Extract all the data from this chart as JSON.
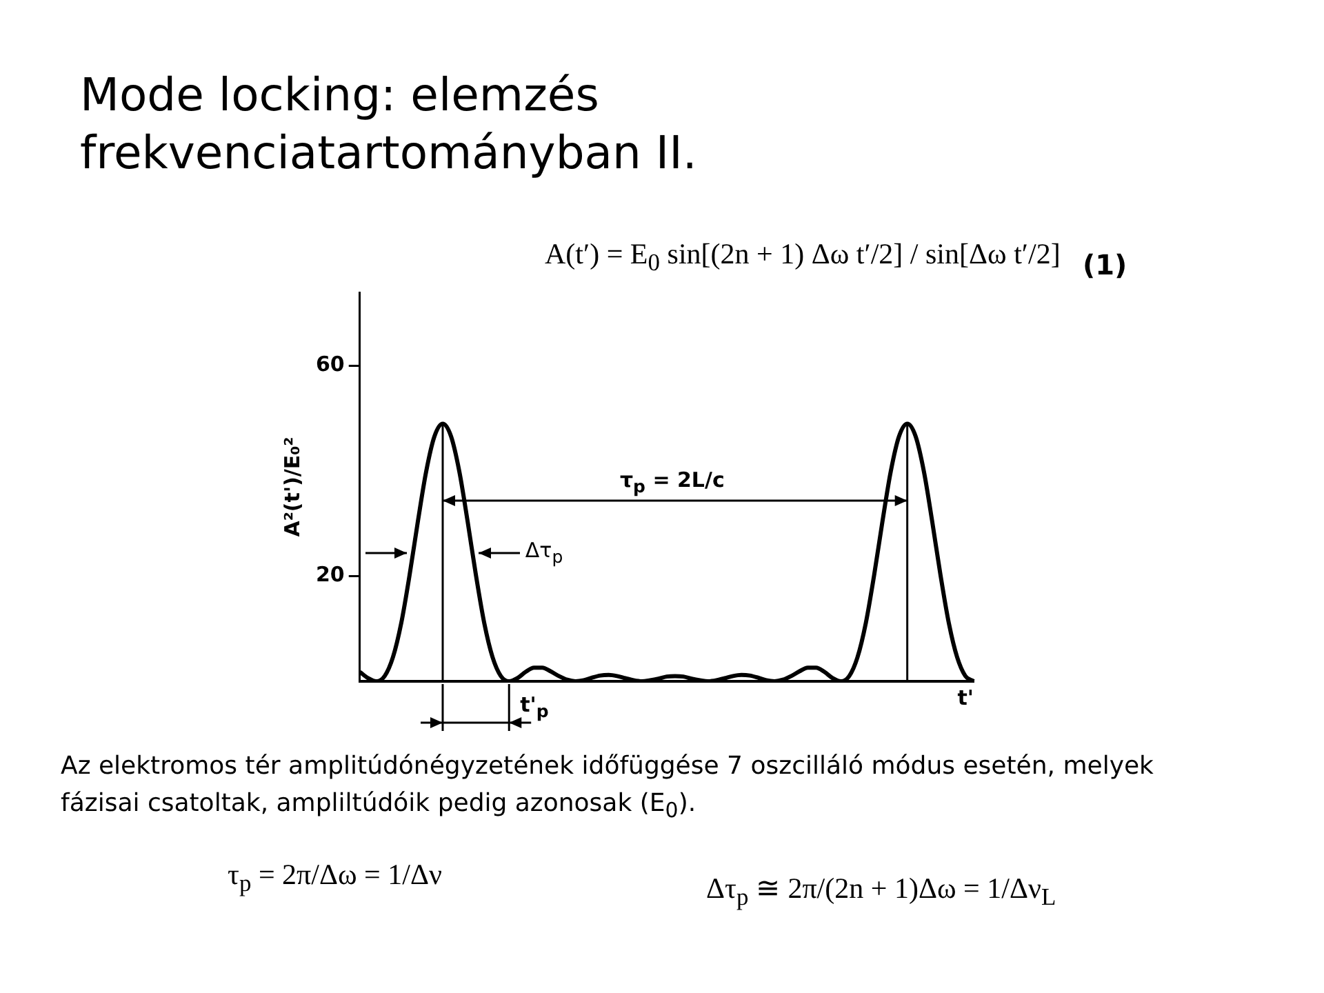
{
  "chart_data": {
    "type": "line",
    "title": "Mode locking: elemzés frekvenciatartományban II.",
    "xlabel": "t'",
    "ylabel": "A²(t')/E₀²",
    "categories": [
      null,
      null,
      null,
      null,
      null,
      null,
      null,
      null,
      null,
      null,
      null,
      null,
      null,
      null,
      null,
      null,
      null,
      null,
      null,
      null,
      null,
      null,
      null,
      null,
      null,
      null,
      null,
      null,
      null,
      null,
      null,
      null,
      null,
      null,
      null,
      null,
      null,
      null,
      null,
      null,
      null,
      null,
      null,
      null,
      null,
      null,
      null,
      null,
      null,
      null,
      null,
      null,
      null,
      null,
      null,
      null,
      null,
      null,
      null,
      null,
      null,
      null,
      null,
      null,
      null,
      null,
      null,
      null,
      null,
      null,
      null,
      null,
      null,
      null,
      null
    ],
    "series": [
      {
        "color": "#000000",
        "values": [
          1.8,
          0.6,
          0,
          1.0,
          4.6,
          11.1,
          20.2,
          30.4,
          39.9,
          46.6,
          49,
          46.6,
          39.9,
          30.4,
          20.2,
          11.1,
          4.6,
          1.0,
          0,
          0.6,
          1.8,
          2.6,
          2.6,
          1.9,
          1.0,
          0.3,
          0,
          0.2,
          0.7,
          1.1,
          1.2,
          1.0,
          0.6,
          0.2,
          0,
          0.2,
          0.5,
          0.9,
          1.0,
          0.9,
          0.5,
          0.2,
          0,
          0.2,
          0.6,
          1.0,
          1.2,
          1.1,
          0.7,
          0.2,
          0,
          0.3,
          1.0,
          1.9,
          2.6,
          2.6,
          1.8,
          0.6,
          0,
          1.0,
          4.6,
          11.1,
          20.2,
          30.4,
          39.9,
          46.6,
          49,
          46.6,
          39.9,
          30.4,
          20.2,
          11.1,
          4.6,
          1.0,
          0
        ]
      }
    ],
    "ylim": [
      0,
      74
    ],
    "yticks": [
      20,
      60
    ],
    "tick_labels": "y",
    "marker": "none",
    "line_style": "solid",
    "annotations": [
      "A(t′) = E$_{0}$ sin[(2n + 1) Δω t′/2] / sin[Δω t′/2]",
      "(1)",
      "τ$_{p}$ = 2L/c",
      "Δτ$_{p}$",
      "t'$_{p}$",
      "Az elektromos tér amplitúdónégyzetének időfüggése 7 oszcilláló módus esetén, melyek fázisai csatoltak, ampliltúdóik pedig azonosak (E$_{0}$).",
      "τ$_{p}$ = 2π/Δω = 1/Δν",
      "Δτ$_{p}$ ≅ 2π/(2n + 1)Δω = 1/Δν$_{L}$"
    ]
  }
}
